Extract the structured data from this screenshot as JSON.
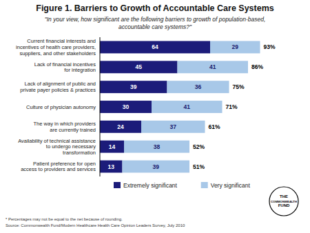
{
  "chart_data": {
    "type": "bar",
    "orientation": "horizontal",
    "stacked": true,
    "data_labels": true,
    "grid": false,
    "legend": "bottom",
    "tick_labels": "y",
    "title": "Figure 1. Barriers to Growth of Accountable Care Systems",
    "subtitle": "\"In your view, how significant are the following barriers to growth of population-based,\naccountable care systems?\"",
    "categories": [
      "Current financial interests and\nincentives of health care providers,\nsuppliers, and other stakeholders",
      "Lack of financial incentives\nfor integration",
      "Lack of alignment of public and\nprivate payer policies & practices",
      "Culture of physician autonomy",
      "The way in which providers\nare currently trained",
      "Availability of technical assistance\nto undergo necessary\ntransformation",
      "Patient preference for open\naccess to providers and services"
    ],
    "series": [
      {
        "name": "Extremely significant",
        "color": "#1C1C7A",
        "values": [
          64,
          45,
          39,
          30,
          24,
          14,
          13
        ]
      },
      {
        "name": "Very significant",
        "color": "#A8C8E8",
        "values": [
          29,
          41,
          36,
          41,
          37,
          38,
          39
        ]
      }
    ],
    "total_labels": [
      "93%",
      "86%",
      "75%",
      "71%",
      "61%",
      "52%",
      "51%"
    ],
    "xlim": [
      0,
      100
    ],
    "footnote": "* Percentages may not be equal to the net because of rounding.\nSource: Commonwealth Fund/Modern Healthcare Health Care Opinion Leaders Survey, July 2010",
    "logo_text": [
      "THE",
      "COMMONWEALTH",
      "FUND"
    ]
  }
}
